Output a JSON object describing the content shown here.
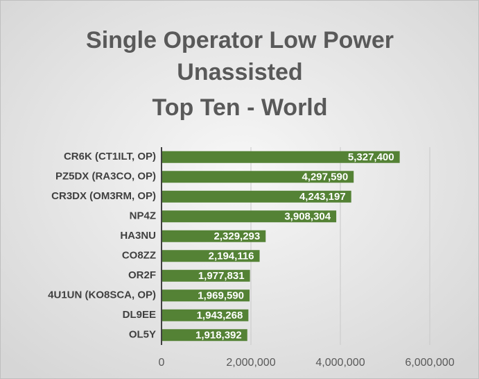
{
  "chart_data": {
    "type": "hbar",
    "title": [
      "Single Operator Low Power",
      "Unassisted",
      "Top Ten - World"
    ],
    "categories": [
      "CR6K (CT1ILT, OP)",
      "PZ5DX (RA3CO, OP)",
      "CR3DX (OM3RM, OP)",
      "NP4Z",
      "HA3NU",
      "CO8ZZ",
      "OR2F",
      "4U1UN (KO8SCA, OP)",
      "DL9EE",
      "OL5Y"
    ],
    "values": [
      5327400,
      4297590,
      4243197,
      3908304,
      2329293,
      2194116,
      1977831,
      1969590,
      1943268,
      1918392
    ],
    "value_labels": [
      "5,327,400",
      "4,297,590",
      "4,243,197",
      "3,908,304",
      "2,329,293",
      "2,194,116",
      "1,977,831",
      "1,969,590",
      "1,943,268",
      "1,918,392"
    ],
    "color": "#548235",
    "xlim": [
      0,
      6000000
    ],
    "xticks": [
      0,
      {
        "value": 2000000,
        "label": "2,000,000"
      },
      {
        "value": 4000000,
        "label": "4,000,000"
      },
      {
        "value": 6000000,
        "label": "6,000,000"
      }
    ],
    "grid": true
  }
}
